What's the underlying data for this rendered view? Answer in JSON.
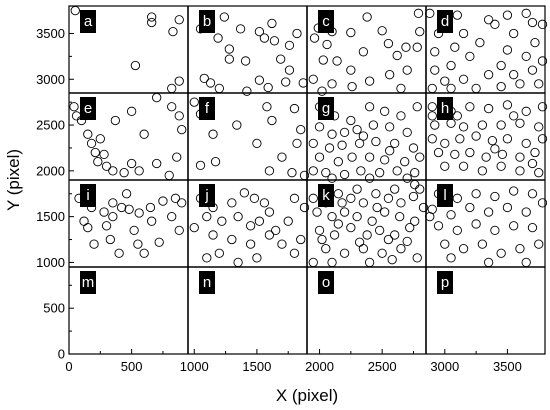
{
  "chart_data": {
    "type": "scatter",
    "xlabel": "X (pixel)",
    "ylabel": "Y (pixel)",
    "xlim": [
      0,
      3800
    ],
    "ylim": [
      0,
      3800
    ],
    "x_ticks": [
      0,
      500,
      1000,
      1500,
      2000,
      2500,
      3000,
      3500
    ],
    "y_ticks": [
      0,
      500,
      1000,
      1500,
      2000,
      2500,
      3000,
      3500
    ],
    "grid_x": [
      950,
      1900,
      2850
    ],
    "grid_y": [
      950,
      1900,
      2850
    ],
    "panels": [
      {
        "label": "a",
        "x0": 0,
        "y0": 2850
      },
      {
        "label": "b",
        "x0": 950,
        "y0": 2850
      },
      {
        "label": "c",
        "x0": 1900,
        "y0": 2850
      },
      {
        "label": "d",
        "x0": 2850,
        "y0": 2850
      },
      {
        "label": "e",
        "x0": 0,
        "y0": 1900
      },
      {
        "label": "f",
        "x0": 950,
        "y0": 1900
      },
      {
        "label": "g",
        "x0": 1900,
        "y0": 1900
      },
      {
        "label": "h",
        "x0": 2850,
        "y0": 1900
      },
      {
        "label": "i",
        "x0": 0,
        "y0": 950
      },
      {
        "label": "j",
        "x0": 950,
        "y0": 950
      },
      {
        "label": "k",
        "x0": 1900,
        "y0": 950
      },
      {
        "label": "l",
        "x0": 2850,
        "y0": 950
      },
      {
        "label": "m",
        "x0": 0,
        "y0": 0
      },
      {
        "label": "n",
        "x0": 950,
        "y0": 0
      },
      {
        "label": "o",
        "x0": 1900,
        "y0": 0
      },
      {
        "label": "p",
        "x0": 2850,
        "y0": 0
      }
    ],
    "points": [
      [
        50,
        3750
      ],
      [
        660,
        3680
      ],
      [
        660,
        3620
      ],
      [
        880,
        3650
      ],
      [
        830,
        3520
      ],
      [
        530,
        3150
      ],
      [
        880,
        2980
      ],
      [
        820,
        2900
      ],
      [
        1050,
        3550
      ],
      [
        1240,
        3680
      ],
      [
        1190,
        3450
      ],
      [
        1280,
        3330
      ],
      [
        1370,
        3550
      ],
      [
        1520,
        3520
      ],
      [
        1620,
        3610
      ],
      [
        1560,
        3450
      ],
      [
        1760,
        3370
      ],
      [
        1690,
        3220
      ],
      [
        1410,
        3200
      ],
      [
        1280,
        3220
      ],
      [
        1080,
        3010
      ],
      [
        1130,
        2960
      ],
      [
        1200,
        2900
      ],
      [
        1420,
        2870
      ],
      [
        1520,
        2990
      ],
      [
        1590,
        2910
      ],
      [
        1730,
        2970
      ],
      [
        1870,
        2960
      ],
      [
        1760,
        3100
      ],
      [
        1820,
        3500
      ],
      [
        1640,
        3420
      ],
      [
        1960,
        3450
      ],
      [
        1990,
        3560
      ],
      [
        2100,
        3520
      ],
      [
        2060,
        3380
      ],
      [
        2030,
        3210
      ],
      [
        2140,
        3200
      ],
      [
        2250,
        3100
      ],
      [
        2350,
        3300
      ],
      [
        2250,
        3510
      ],
      [
        2380,
        3680
      ],
      [
        2500,
        3530
      ],
      [
        2550,
        3390
      ],
      [
        2620,
        3260
      ],
      [
        2690,
        3350
      ],
      [
        2790,
        3720
      ],
      [
        2800,
        3520
      ],
      [
        2780,
        3350
      ],
      [
        2700,
        3100
      ],
      [
        2560,
        3050
      ],
      [
        2400,
        2980
      ],
      [
        2260,
        2920
      ],
      [
        2100,
        2950
      ],
      [
        1950,
        3000
      ],
      [
        2020,
        2870
      ],
      [
        2650,
        2900
      ],
      [
        2880,
        3720
      ],
      [
        3100,
        3700
      ],
      [
        3350,
        3650
      ],
      [
        3500,
        3700
      ],
      [
        3650,
        3720
      ],
      [
        3700,
        3620
      ],
      [
        3550,
        3500
      ],
      [
        3400,
        3600
      ],
      [
        3150,
        3500
      ],
      [
        2950,
        3500
      ],
      [
        2920,
        3300
      ],
      [
        3080,
        3350
      ],
      [
        3280,
        3400
      ],
      [
        3500,
        3320
      ],
      [
        3720,
        3400
      ],
      [
        3650,
        3250
      ],
      [
        3450,
        3150
      ],
      [
        3200,
        3250
      ],
      [
        3050,
        3150
      ],
      [
        2920,
        3100
      ],
      [
        3000,
        2980
      ],
      [
        3150,
        3000
      ],
      [
        3350,
        3050
      ],
      [
        3550,
        3050
      ],
      [
        3700,
        3100
      ],
      [
        3750,
        2950
      ],
      [
        3600,
        2950
      ],
      [
        3450,
        2920
      ],
      [
        3250,
        2900
      ],
      [
        3050,
        2900
      ],
      [
        2900,
        2900
      ],
      [
        3780,
        3200
      ],
      [
        3780,
        3600
      ],
      [
        40,
        2700
      ],
      [
        100,
        2550
      ],
      [
        150,
        2400
      ],
      [
        250,
        2350
      ],
      [
        370,
        2550
      ],
      [
        500,
        2650
      ],
      [
        600,
        2400
      ],
      [
        700,
        2800
      ],
      [
        820,
        2700
      ],
      [
        880,
        2600
      ],
      [
        900,
        2450
      ],
      [
        180,
        2300
      ],
      [
        210,
        2200
      ],
      [
        280,
        2180
      ],
      [
        300,
        2050
      ],
      [
        350,
        2000
      ],
      [
        440,
        1980
      ],
      [
        500,
        2080
      ],
      [
        560,
        2000
      ],
      [
        700,
        2080
      ],
      [
        800,
        1950
      ],
      [
        860,
        2150
      ],
      [
        230,
        2100
      ],
      [
        60,
        2600
      ],
      [
        1000,
        2750
      ],
      [
        1050,
        2620
      ],
      [
        1150,
        2400
      ],
      [
        1340,
        2500
      ],
      [
        1580,
        2700
      ],
      [
        1620,
        2550
      ],
      [
        1800,
        2680
      ],
      [
        1850,
        2450
      ],
      [
        1820,
        2300
      ],
      [
        1700,
        2150
      ],
      [
        1500,
        2300
      ],
      [
        1170,
        2100
      ],
      [
        1050,
        2060
      ],
      [
        1780,
        1980
      ],
      [
        1880,
        1950
      ],
      [
        1600,
        2000
      ],
      [
        2000,
        2700
      ],
      [
        2120,
        2600
      ],
      [
        2250,
        2550
      ],
      [
        2400,
        2700
      ],
      [
        2520,
        2650
      ],
      [
        2650,
        2600
      ],
      [
        2780,
        2700
      ],
      [
        2000,
        2480
      ],
      [
        2100,
        2400
      ],
      [
        2200,
        2420
      ],
      [
        2300,
        2450
      ],
      [
        2430,
        2500
      ],
      [
        2560,
        2480
      ],
      [
        2700,
        2420
      ],
      [
        1950,
        2300
      ],
      [
        2080,
        2250
      ],
      [
        2180,
        2280
      ],
      [
        2320,
        2300
      ],
      [
        2450,
        2320
      ],
      [
        2600,
        2300
      ],
      [
        2750,
        2250
      ],
      [
        2000,
        2150
      ],
      [
        2150,
        2100
      ],
      [
        2260,
        2150
      ],
      [
        2400,
        2150
      ],
      [
        2520,
        2120
      ],
      [
        2680,
        2100
      ],
      [
        2800,
        2150
      ],
      [
        1950,
        2000
      ],
      [
        2050,
        1980
      ],
      [
        2200,
        1960
      ],
      [
        2330,
        2000
      ],
      [
        2480,
        1980
      ],
      [
        2620,
        2000
      ],
      [
        2760,
        1980
      ],
      [
        2100,
        1920
      ],
      [
        2400,
        1920
      ],
      [
        2700,
        1920
      ],
      [
        2560,
        2220
      ],
      [
        2350,
        2380
      ],
      [
        2900,
        2700
      ],
      [
        3050,
        2650
      ],
      [
        3200,
        2700
      ],
      [
        3350,
        2680
      ],
      [
        3500,
        2720
      ],
      [
        3650,
        2650
      ],
      [
        3780,
        2700
      ],
      [
        2920,
        2500
      ],
      [
        3050,
        2520
      ],
      [
        3150,
        2480
      ],
      [
        3300,
        2500
      ],
      [
        3450,
        2500
      ],
      [
        3600,
        2520
      ],
      [
        3750,
        2480
      ],
      [
        2900,
        2350
      ],
      [
        3000,
        2300
      ],
      [
        3120,
        2350
      ],
      [
        3250,
        2380
      ],
      [
        3380,
        2330
      ],
      [
        3500,
        2350
      ],
      [
        3650,
        2300
      ],
      [
        3780,
        2350
      ],
      [
        2950,
        2200
      ],
      [
        3080,
        2180
      ],
      [
        3200,
        2200
      ],
      [
        3330,
        2150
      ],
      [
        3460,
        2180
      ],
      [
        3600,
        2150
      ],
      [
        3720,
        2200
      ],
      [
        3000,
        2050
      ],
      [
        3150,
        2050
      ],
      [
        3300,
        2000
      ],
      [
        3450,
        2050
      ],
      [
        3600,
        2000
      ],
      [
        3750,
        1980
      ],
      [
        2900,
        2600
      ],
      [
        3100,
        2600
      ],
      [
        3550,
        2600
      ],
      [
        3400,
        2240
      ],
      [
        3700,
        2080
      ],
      [
        80,
        1700
      ],
      [
        180,
        1600
      ],
      [
        280,
        1550
      ],
      [
        350,
        1650
      ],
      [
        420,
        1600
      ],
      [
        480,
        1580
      ],
      [
        560,
        1540
      ],
      [
        650,
        1600
      ],
      [
        750,
        1670
      ],
      [
        850,
        1700
      ],
      [
        900,
        1650
      ],
      [
        120,
        1450
      ],
      [
        300,
        1400
      ],
      [
        520,
        1350
      ],
      [
        660,
        1450
      ],
      [
        820,
        1500
      ],
      [
        880,
        1350
      ],
      [
        200,
        1200
      ],
      [
        330,
        1250
      ],
      [
        400,
        1100
      ],
      [
        600,
        1100
      ],
      [
        720,
        1220
      ],
      [
        550,
        1200
      ],
      [
        150,
        1380
      ],
      [
        350,
        1500
      ],
      [
        460,
        1750
      ],
      [
        1050,
        1700
      ],
      [
        1150,
        1600
      ],
      [
        1300,
        1650
      ],
      [
        1400,
        1760
      ],
      [
        1480,
        1700
      ],
      [
        1560,
        1650
      ],
      [
        1600,
        1550
      ],
      [
        1520,
        1450
      ],
      [
        1450,
        1400
      ],
      [
        1350,
        1500
      ],
      [
        1220,
        1450
      ],
      [
        1100,
        1500
      ],
      [
        1000,
        1380
      ],
      [
        1150,
        1300
      ],
      [
        1300,
        1250
      ],
      [
        1450,
        1200
      ],
      [
        1600,
        1300
      ],
      [
        1700,
        1200
      ],
      [
        1800,
        1100
      ],
      [
        1850,
        1250
      ],
      [
        1750,
        1450
      ],
      [
        1650,
        1350
      ],
      [
        1200,
        1100
      ],
      [
        1500,
        1050
      ],
      [
        1350,
        1000
      ],
      [
        1100,
        1050
      ],
      [
        1800,
        1700
      ],
      [
        1880,
        1600
      ],
      [
        1950,
        1700
      ],
      [
        2050,
        1650
      ],
      [
        2150,
        1750
      ],
      [
        2250,
        1700
      ],
      [
        2350,
        1650
      ],
      [
        2450,
        1750
      ],
      [
        2550,
        1700
      ],
      [
        2650,
        1650
      ],
      [
        2750,
        1720
      ],
      [
        2800,
        1800
      ],
      [
        1980,
        1550
      ],
      [
        2100,
        1500
      ],
      [
        2200,
        1550
      ],
      [
        2300,
        1500
      ],
      [
        2420,
        1450
      ],
      [
        2520,
        1550
      ],
      [
        2640,
        1500
      ],
      [
        2760,
        1450
      ],
      [
        2000,
        1350
      ],
      [
        2120,
        1300
      ],
      [
        2250,
        1380
      ],
      [
        2380,
        1300
      ],
      [
        2480,
        1350
      ],
      [
        2600,
        1300
      ],
      [
        2720,
        1380
      ],
      [
        2050,
        1150
      ],
      [
        2200,
        1100
      ],
      [
        2350,
        1150
      ],
      [
        2500,
        1100
      ],
      [
        2650,
        1150
      ],
      [
        2780,
        1050
      ],
      [
        1950,
        1000
      ],
      [
        2100,
        1000
      ],
      [
        2400,
        1000
      ],
      [
        2550,
        1250
      ],
      [
        2300,
        1800
      ],
      [
        2600,
        1800
      ],
      [
        2150,
        1420
      ],
      [
        2700,
        1230
      ],
      [
        2460,
        1600
      ],
      [
        2020,
        1250
      ],
      [
        2830,
        1600
      ],
      [
        2580,
        1030
      ],
      [
        2320,
        1220
      ],
      [
        2180,
        1650
      ],
      [
        2880,
        1500
      ],
      [
        2760,
        1850
      ],
      [
        2950,
        1750
      ],
      [
        3100,
        1700
      ],
      [
        3250,
        1750
      ],
      [
        3400,
        1720
      ],
      [
        3550,
        1780
      ],
      [
        3700,
        1750
      ],
      [
        3780,
        1650
      ],
      [
        2900,
        1580
      ],
      [
        3050,
        1520
      ],
      [
        3200,
        1600
      ],
      [
        3350,
        1550
      ],
      [
        3500,
        1600
      ],
      [
        3650,
        1550
      ],
      [
        2950,
        1400
      ],
      [
        3100,
        1350
      ],
      [
        3250,
        1420
      ],
      [
        3400,
        1350
      ],
      [
        3550,
        1400
      ],
      [
        3700,
        1380
      ],
      [
        3000,
        1200
      ],
      [
        3150,
        1150
      ],
      [
        3300,
        1200
      ],
      [
        3450,
        1100
      ],
      [
        3600,
        1150
      ],
      [
        3750,
        1200
      ],
      [
        3050,
        1050
      ],
      [
        3350,
        1000
      ],
      [
        3650,
        1000
      ]
    ]
  }
}
